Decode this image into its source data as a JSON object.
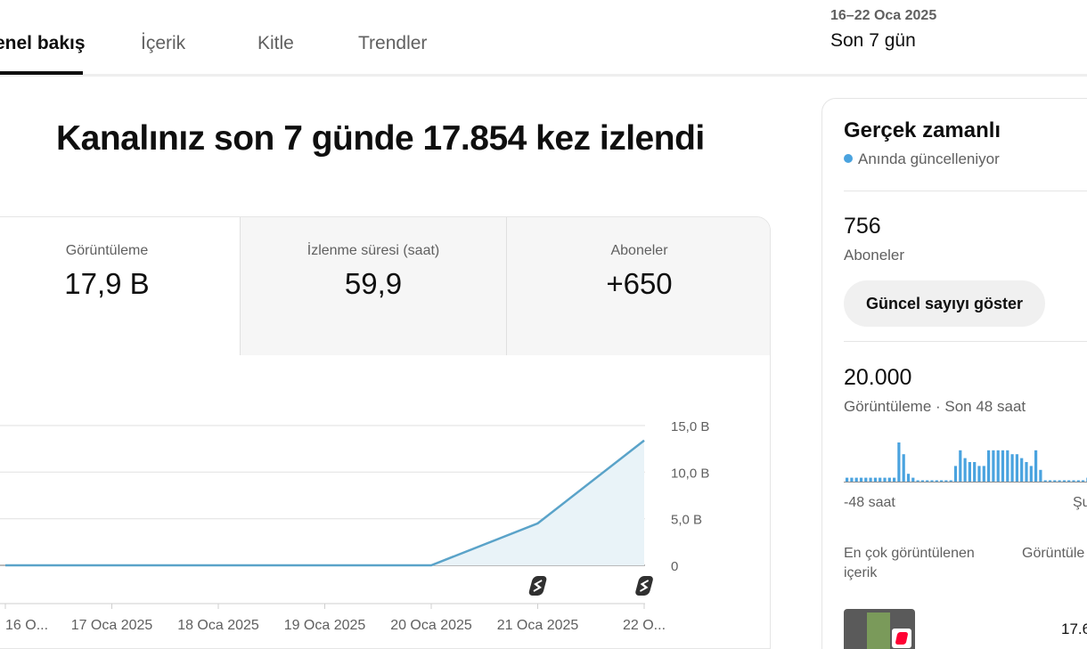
{
  "tabs": [
    {
      "label": "enel bakış",
      "active": true
    },
    {
      "label": "İçerik",
      "active": false
    },
    {
      "label": "Kitle",
      "active": false
    },
    {
      "label": "Trendler",
      "active": false
    }
  ],
  "date_range": {
    "range": "16–22 Oca 2025",
    "label": "Son 7 gün"
  },
  "headline": "Kanalınız son 7 günde 17.854 kez izlendi",
  "metrics": [
    {
      "label": "Görüntüleme",
      "value": "17,9 B"
    },
    {
      "label": "İzlenme süresi (saat)",
      "value": "59,9"
    },
    {
      "label": "Aboneler",
      "value": "+650"
    }
  ],
  "colors": {
    "accent": "#4aa3df",
    "line": "#5aa3c9",
    "fill": "#e9f3f8",
    "text_muted": "#606060"
  },
  "chart_data": {
    "type": "area",
    "x": [
      "16 O...",
      "17 Oca 2025",
      "18 Oca 2025",
      "19 Oca 2025",
      "20 Oca 2025",
      "21 Oca 2025",
      "22 O..."
    ],
    "series": [
      {
        "values": [
          0,
          0,
          0,
          0,
          0,
          4500,
          13400
        ]
      }
    ],
    "y_ticks": [
      {
        "value": 15000,
        "label": "15,0 B"
      },
      {
        "value": 10000,
        "label": "10,0 B"
      },
      {
        "value": 5000,
        "label": "5,0 B"
      },
      {
        "value": 0,
        "label": "0"
      }
    ],
    "ylim": [
      0,
      15000
    ],
    "grid": true,
    "markers": [
      "21 Oca 2025",
      "22 O..."
    ],
    "marker_icon": "shorts-icon"
  },
  "realtime": {
    "title": "Gerçek zamanlı",
    "status": "Anında güncelleniyor",
    "subscribers_value": "756",
    "subscribers_label": "Aboneler",
    "button_label": "Güncel sayıyı göster",
    "views_value": "20.000",
    "views_label": "Görüntüleme · Son 48 saat",
    "axis_start": "-48 saat",
    "axis_end": "Şu",
    "spark_values": [
      1,
      1,
      1,
      1,
      1,
      1,
      1,
      1,
      1,
      1,
      1,
      10,
      7,
      2,
      1,
      0,
      0,
      0,
      0,
      0,
      0,
      0,
      0,
      4,
      8,
      6,
      5,
      5,
      4,
      4,
      8,
      8,
      8,
      8,
      8,
      7,
      7,
      6,
      5,
      4,
      8,
      3,
      0,
      0,
      0,
      0,
      0,
      0,
      0,
      0,
      0,
      1,
      2,
      4,
      5,
      4
    ],
    "col_content": "En çok görüntülenen\niçerik",
    "col_views": "Görüntüle",
    "row_value": "17.6"
  }
}
